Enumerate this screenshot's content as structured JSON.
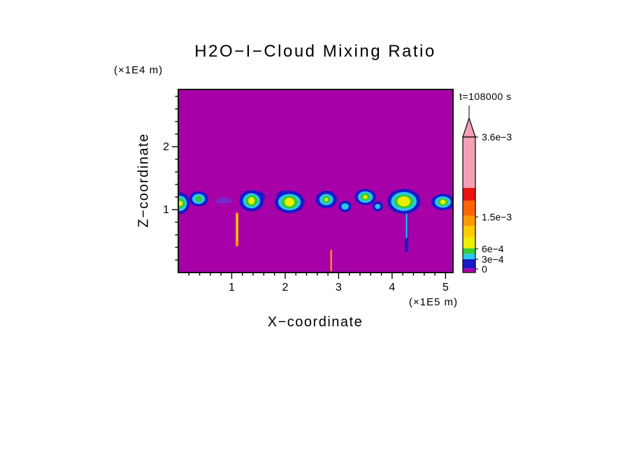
{
  "title": "H2O−I−Cloud Mixing Ratio",
  "time_label": "t=108000 s",
  "axes": {
    "x_label": "X−coordinate",
    "x_units": "(×1E5 m)",
    "z_label": "Z−coordinate",
    "z_units": "(×1E4 m)"
  },
  "chart_data": {
    "type": "heatmap",
    "title": "H2O−I−Cloud Mixing Ratio",
    "xlabel": "X−coordinate (×1E5 m)",
    "ylabel": "Z−coordinate (×1E4 m)",
    "time": "t=108000 s",
    "xlim": [
      0,
      5.14
    ],
    "zlim": [
      0,
      2.91
    ],
    "x_major_ticks": [
      1,
      2,
      3,
      4,
      5
    ],
    "x_minor_step": 0.2,
    "z_major_ticks": [
      1,
      2
    ],
    "z_minor_step": 0.2,
    "background_value": 0,
    "background_color": "#A800A8",
    "palette": {
      "magenta": "#A800A8",
      "purple": "#7828C8",
      "blue": "#1A1AC8",
      "cyan": "#29C8F0",
      "green": "#33CC33",
      "yellow": "#EEEE00",
      "gold": "#FFCC00",
      "orange": "#FF9900",
      "dark_orange": "#FF6600",
      "red": "#EE1111",
      "pink": "#F2A0B4"
    },
    "colorbar": {
      "labels": [
        {
          "text": "3.6e−3",
          "f": 1.0
        },
        {
          "text": "1.5e−3",
          "f": 0.41
        },
        {
          "text": "6e−4",
          "f": 0.175
        },
        {
          "text": "3e−4",
          "f": 0.098
        },
        {
          "text": "0",
          "f": 0.026
        }
      ],
      "segments": [
        {
          "c": "magenta",
          "h": 0.03
        },
        {
          "c": "blue",
          "h": 0.068
        },
        {
          "c": "cyan",
          "h": 0.04
        },
        {
          "c": "green",
          "h": 0.04
        },
        {
          "c": "yellow",
          "h": 0.082
        },
        {
          "c": "gold",
          "h": 0.085
        },
        {
          "c": "orange",
          "h": 0.075
        },
        {
          "c": "dark_orange",
          "h": 0.11
        },
        {
          "c": "red",
          "h": 0.095
        },
        {
          "c": "pink",
          "h": 0.375
        }
      ]
    },
    "clouds": [
      {
        "x": 0.04,
        "z": 1.1,
        "layers": [
          {
            "c": "blue",
            "rx": 0.17,
            "rz": 0.17
          },
          {
            "c": "cyan",
            "rx": 0.12,
            "rz": 0.12
          },
          {
            "c": "green",
            "rx": 0.08,
            "rz": 0.08
          },
          {
            "c": "yellow",
            "rx": 0.04,
            "rz": 0.04
          }
        ]
      },
      {
        "x": 0.38,
        "z": 1.17,
        "layers": [
          {
            "c": "blue",
            "rx": 0.18,
            "rz": 0.12
          },
          {
            "c": "cyan",
            "rx": 0.12,
            "rz": 0.08
          },
          {
            "c": "green",
            "rx": 0.06,
            "rz": 0.05
          }
        ]
      },
      {
        "x": 0.85,
        "z": 1.14,
        "layers": [
          {
            "c": "purple",
            "rx": 0.15,
            "rz": 0.05
          }
        ]
      },
      {
        "x": 1.37,
        "z": 1.14,
        "layers": [
          {
            "c": "blue",
            "rx": 0.23,
            "rz": 0.17
          },
          {
            "c": "blue",
            "dx": 0.13,
            "dz": 0.06,
            "rx": 0.12,
            "rz": 0.09
          },
          {
            "c": "cyan",
            "rx": 0.16,
            "rz": 0.12
          },
          {
            "c": "green",
            "rx": 0.11,
            "rz": 0.09
          },
          {
            "c": "yellow",
            "rx": 0.06,
            "rz": 0.06
          }
        ]
      },
      {
        "x": 2.08,
        "z": 1.12,
        "layers": [
          {
            "c": "blue",
            "rx": 0.28,
            "rz": 0.18
          },
          {
            "c": "blue",
            "dx": -0.1,
            "dz": 0.08,
            "rx": 0.15,
            "rz": 0.1
          },
          {
            "c": "cyan",
            "rx": 0.21,
            "rz": 0.13
          },
          {
            "c": "green",
            "rx": 0.15,
            "rz": 0.1
          },
          {
            "c": "yellow",
            "rx": 0.09,
            "rz": 0.07
          }
        ]
      },
      {
        "x": 2.77,
        "z": 1.16,
        "layers": [
          {
            "c": "blue",
            "rx": 0.2,
            "rz": 0.14
          },
          {
            "c": "cyan",
            "rx": 0.13,
            "rz": 0.09
          },
          {
            "c": "green",
            "rx": 0.07,
            "rz": 0.06
          },
          {
            "c": "yellow",
            "rx": 0.03,
            "rz": 0.03
          }
        ]
      },
      {
        "x": 3.12,
        "z": 1.05,
        "layers": [
          {
            "c": "blue",
            "rx": 0.12,
            "rz": 0.09
          },
          {
            "c": "cyan",
            "rx": 0.07,
            "rz": 0.05
          }
        ]
      },
      {
        "x": 3.5,
        "z": 1.2,
        "layers": [
          {
            "c": "blue",
            "rx": 0.2,
            "rz": 0.13
          },
          {
            "c": "cyan",
            "rx": 0.14,
            "rz": 0.09
          },
          {
            "c": "green",
            "rx": 0.09,
            "rz": 0.06
          },
          {
            "c": "yellow",
            "rx": 0.04,
            "rz": 0.03
          }
        ]
      },
      {
        "x": 3.73,
        "z": 1.05,
        "layers": [
          {
            "c": "blue",
            "rx": 0.1,
            "rz": 0.08
          },
          {
            "c": "cyan",
            "rx": 0.05,
            "rz": 0.04
          }
        ]
      },
      {
        "x": 4.22,
        "z": 1.13,
        "layers": [
          {
            "c": "blue",
            "rx": 0.31,
            "rz": 0.2
          },
          {
            "c": "cyan",
            "rx": 0.24,
            "rz": 0.15
          },
          {
            "c": "green",
            "rx": 0.18,
            "rz": 0.11
          },
          {
            "c": "yellow",
            "rx": 0.12,
            "rz": 0.08
          }
        ]
      },
      {
        "x": 4.95,
        "z": 1.12,
        "layers": [
          {
            "c": "blue",
            "rx": 0.22,
            "rz": 0.13
          },
          {
            "c": "cyan",
            "rx": 0.15,
            "rz": 0.09
          },
          {
            "c": "green",
            "rx": 0.09,
            "rz": 0.06
          },
          {
            "c": "yellow",
            "rx": 0.05,
            "rz": 0.04
          }
        ]
      }
    ],
    "streaks": [
      {
        "x": 1.1,
        "z1": 0.42,
        "z2": 0.95,
        "w": 0.05,
        "c": "orange"
      },
      {
        "x": 1.1,
        "z1": 0.5,
        "z2": 0.93,
        "w": 0.02,
        "c": "yellow"
      },
      {
        "x": 4.27,
        "z1": 0.33,
        "z2": 1.0,
        "w": 0.06,
        "c": "blue"
      },
      {
        "x": 4.27,
        "z1": 0.55,
        "z2": 1.0,
        "w": 0.03,
        "c": "cyan"
      },
      {
        "x": 2.86,
        "z1": 0.02,
        "z2": 0.36,
        "w": 0.03,
        "c": "orange"
      }
    ]
  }
}
